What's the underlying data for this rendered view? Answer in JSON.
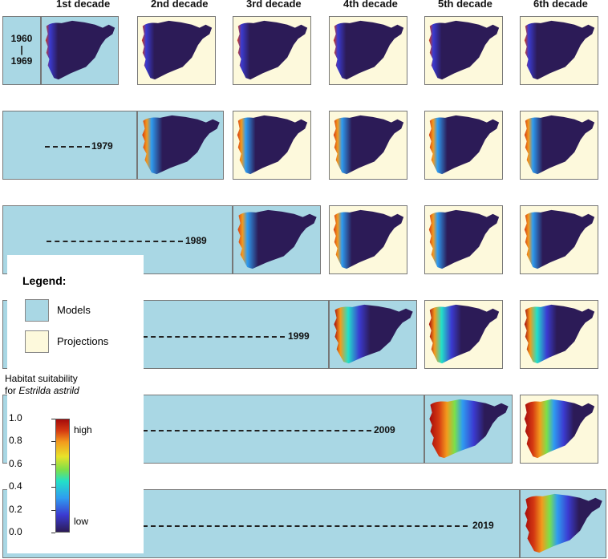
{
  "column_headers": [
    "1st decade",
    "2nd decade",
    "3rd decade",
    "4th decade",
    "5th decade",
    "6th decade"
  ],
  "rows": [
    {
      "end_year": "1969",
      "start_year": "1960",
      "range_sep": "|"
    },
    {
      "end_year": "1979"
    },
    {
      "end_year": "1989"
    },
    {
      "end_year": "1999"
    },
    {
      "end_year": "2009"
    },
    {
      "end_year": "2019"
    }
  ],
  "legend": {
    "title": "Legend:",
    "models_label": "Models",
    "projections_label": "Projections",
    "colorbar_title_line1": "Habitat suitability",
    "colorbar_title_line2_prefix": "for ",
    "colorbar_title_species": "Estrilda astrild",
    "ticks": [
      "1.0",
      "0.8",
      "0.6",
      "0.4",
      "0.2",
      "0.0"
    ],
    "high_label": "high",
    "low_label": "low"
  },
  "colors": {
    "model_bg": "#a9d7e4",
    "projection_bg": "#fdf9dc",
    "map_base": "#2c1b57",
    "suitability_low": "#2c1b57",
    "suitability_high": "#a50b0b"
  }
}
